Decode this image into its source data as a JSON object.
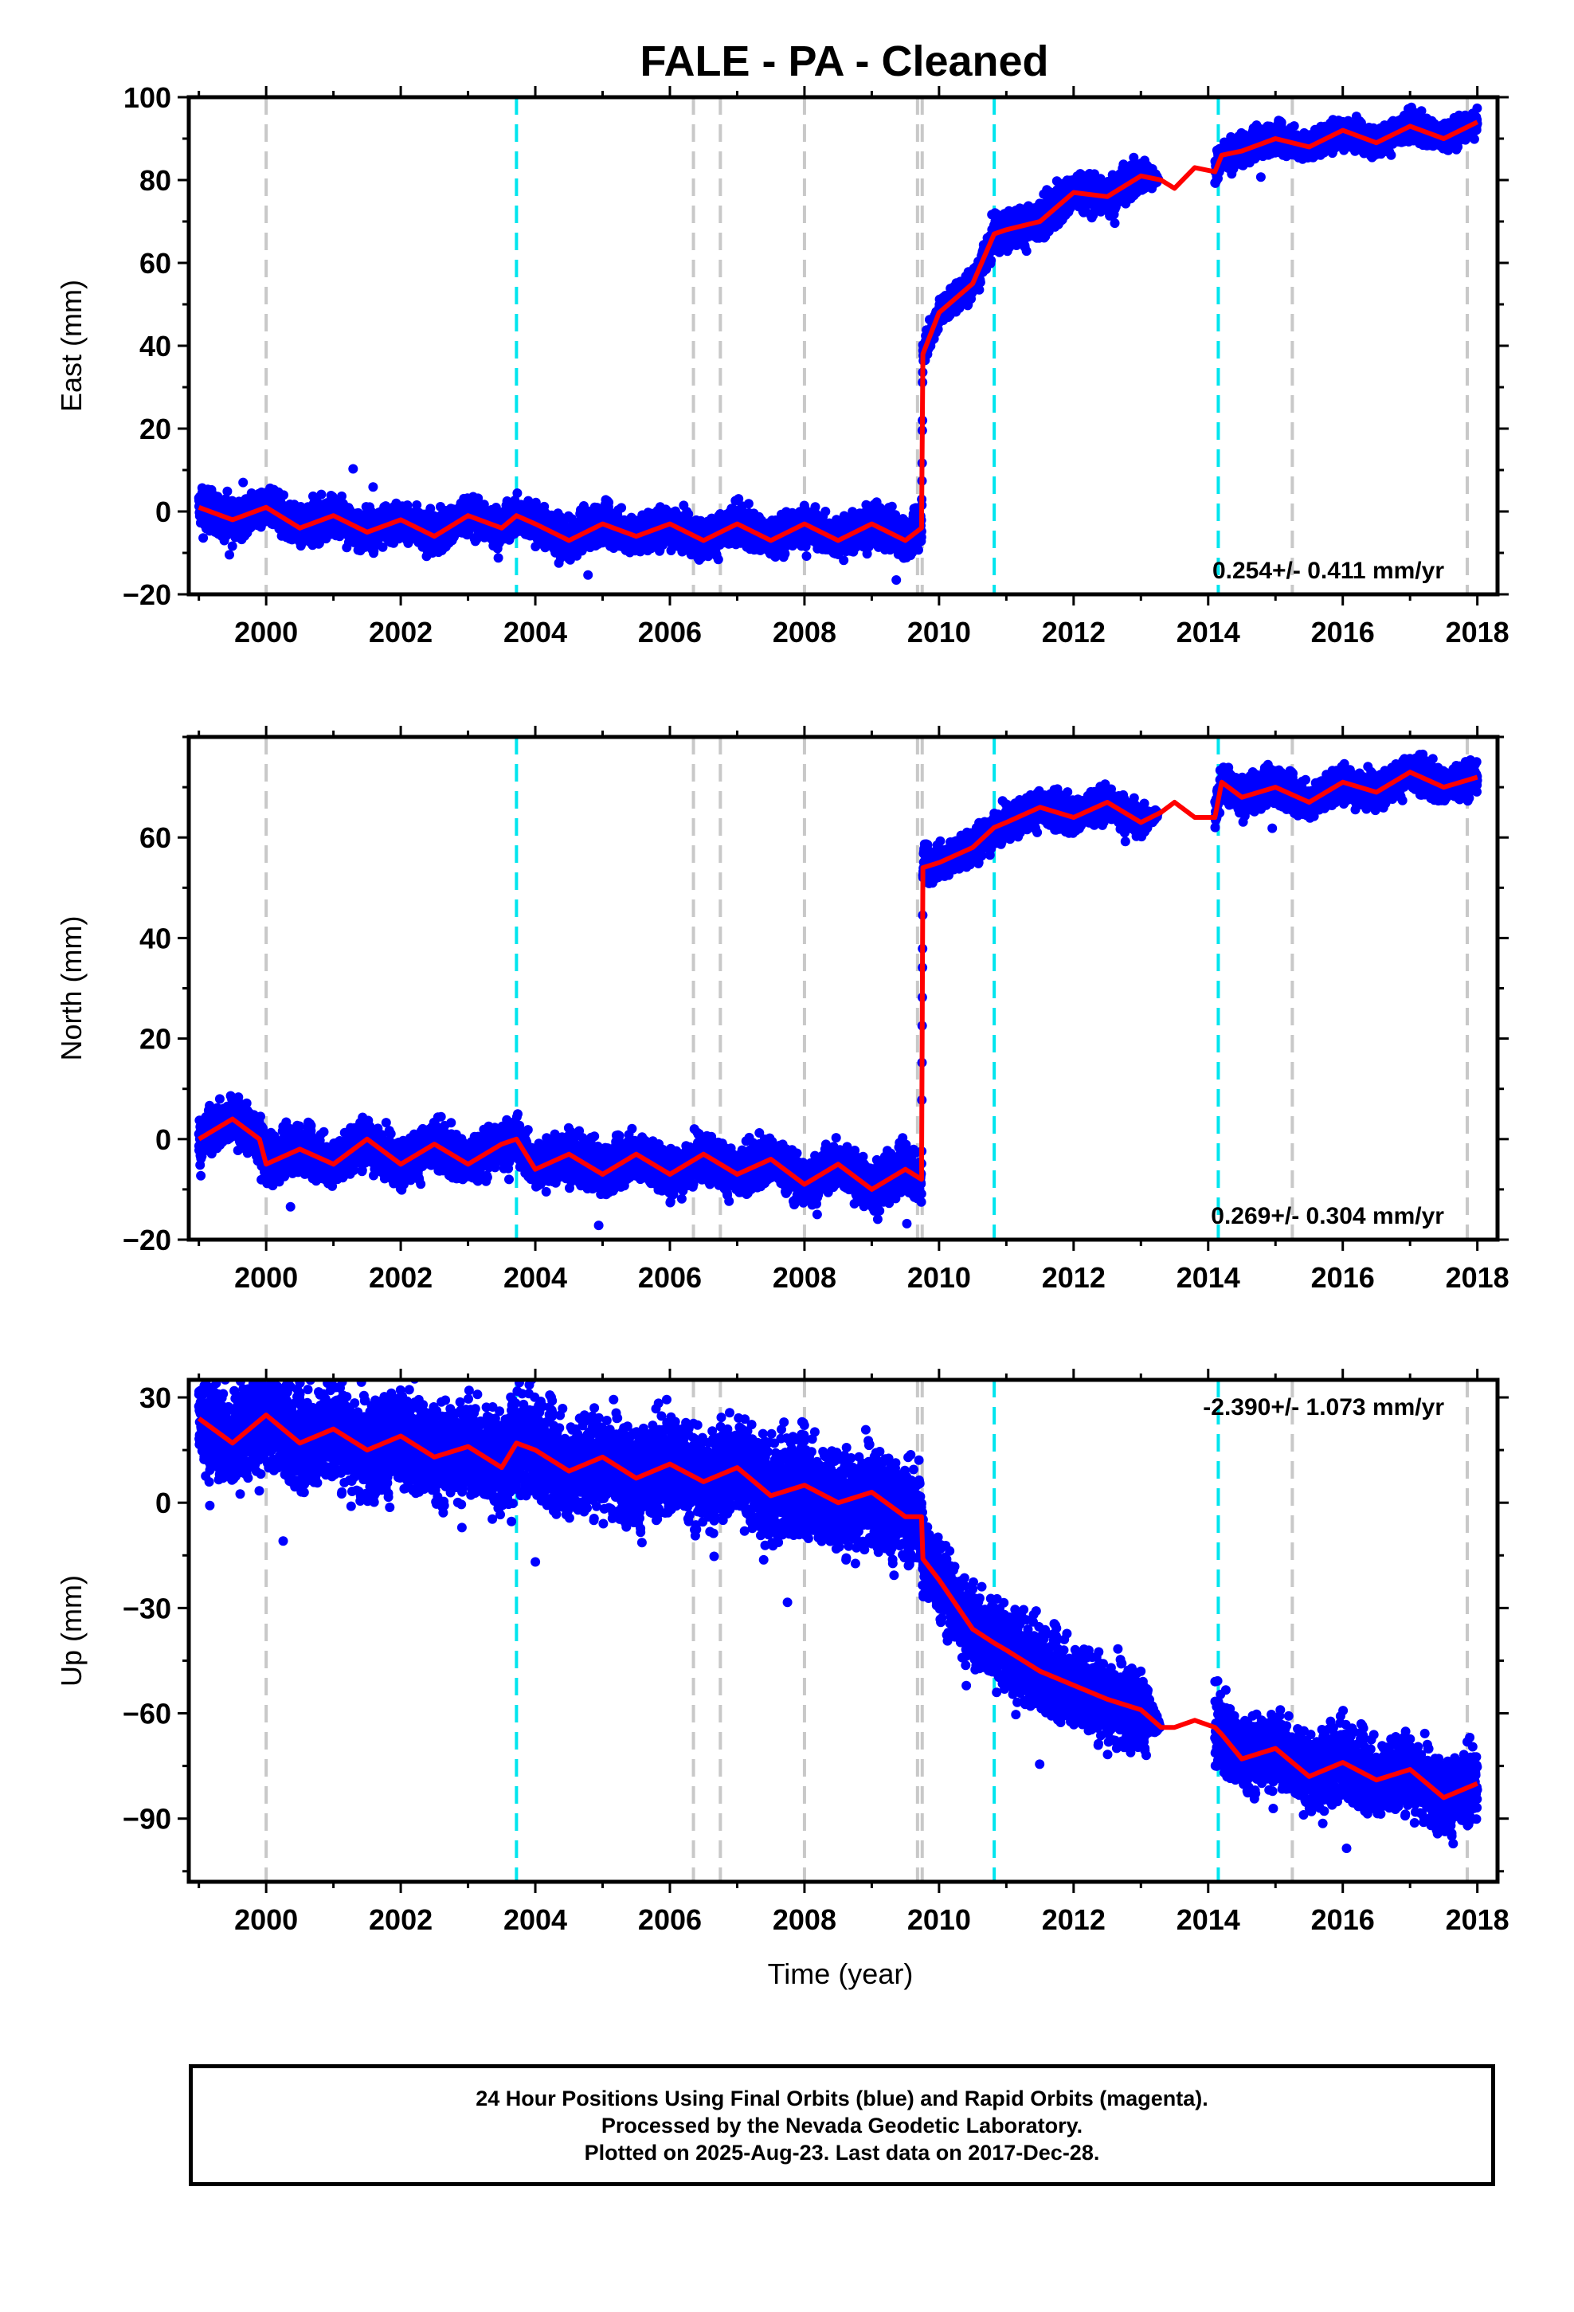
{
  "title": "FALE  - PA - Cleaned",
  "xlabel": "Time (year)",
  "caption": {
    "line1": "24 Hour Positions Using Final Orbits (blue) and Rapid Orbits (magenta).",
    "line2": "Processed by the Nevada Geodetic Laboratory.",
    "line3": "Plotted on 2025-Aug-23. Last data on 2017-Dec-28."
  },
  "colors": {
    "points": "#0000ff",
    "model": "#ff0000",
    "cyan_lines": "#00e5ee",
    "gray_lines": "#c8c8c8"
  },
  "event_lines": {
    "cyan": [
      2003.72,
      2010.82,
      2014.15
    ],
    "gray": [
      2000.0,
      2006.35,
      2006.75,
      2008.0,
      2009.68,
      2009.75,
      2015.25,
      2017.85
    ]
  },
  "chart_data": [
    {
      "type": "scatter",
      "panel": "east",
      "ylabel": "East (mm)",
      "rate_label": "0.254+/- 0.411 mm/yr",
      "xlim": [
        1998.85,
        2018.3
      ],
      "ylim": [
        -20,
        100
      ],
      "xticks": [
        2000,
        2002,
        2004,
        2006,
        2008,
        2010,
        2012,
        2014,
        2016,
        2018
      ],
      "yticks": [
        -20,
        0,
        20,
        40,
        60,
        80,
        100
      ],
      "series": [
        {
          "x": [
            1999.0,
            1999.5,
            2000.0,
            2000.5,
            2001.0,
            2001.5,
            2002.0,
            2002.5,
            2003.0,
            2003.5,
            2003.72,
            2004.0,
            2004.5,
            2005.0,
            2005.5,
            2006.0,
            2006.5,
            2007.0,
            2007.5,
            2008.0,
            2008.5,
            2009.0,
            2009.5,
            2009.74,
            2009.76,
            2010.0,
            2010.5,
            2010.82,
            2011.0,
            2011.5,
            2012.0,
            2012.5,
            2013.0,
            2013.3,
            2013.5,
            2013.8,
            2014.1,
            2014.2,
            2014.5,
            2015.0,
            2015.5,
            2016.0,
            2016.5,
            2017.0,
            2017.5,
            2018.0
          ],
          "y": [
            1,
            -2,
            1,
            -4,
            -1,
            -5,
            -2,
            -6,
            -1,
            -4,
            -1,
            -3,
            -7,
            -3,
            -6,
            -3,
            -7,
            -3,
            -7,
            -3,
            -7,
            -3,
            -7,
            -4,
            38,
            48,
            55,
            67,
            68,
            70,
            77,
            76,
            81,
            80,
            78,
            83,
            82,
            86,
            87,
            90,
            88,
            92,
            89,
            93,
            90,
            94
          ],
          "spread": [
            4,
            4,
            4,
            4,
            4,
            4,
            4,
            4,
            4,
            4,
            4,
            4,
            4,
            4,
            4,
            4,
            4,
            4,
            4,
            4,
            4,
            4,
            4,
            4,
            3,
            3,
            3,
            4,
            4,
            4,
            4,
            4,
            4,
            0,
            0,
            0,
            3,
            3,
            3,
            3,
            3,
            3,
            3,
            3,
            3,
            3
          ],
          "gaps": [
            [
              2013.3,
              2014.1
            ]
          ]
        }
      ]
    },
    {
      "type": "scatter",
      "panel": "north",
      "ylabel": "North (mm)",
      "rate_label": "0.269+/- 0.304 mm/yr",
      "xlim": [
        1998.85,
        2018.3
      ],
      "ylim": [
        -20,
        80
      ],
      "xticks": [
        2000,
        2002,
        2004,
        2006,
        2008,
        2010,
        2012,
        2014,
        2016,
        2018
      ],
      "yticks": [
        -20,
        0,
        20,
        40,
        60
      ],
      "series": [
        {
          "x": [
            1999.0,
            1999.5,
            1999.9,
            2000.0,
            2000.5,
            2001.0,
            2001.5,
            2002.0,
            2002.5,
            2003.0,
            2003.5,
            2003.72,
            2004.0,
            2004.5,
            2005.0,
            2005.5,
            2006.0,
            2006.5,
            2007.0,
            2007.5,
            2008.0,
            2008.5,
            2009.0,
            2009.5,
            2009.74,
            2009.76,
            2010.0,
            2010.5,
            2010.82,
            2011.0,
            2011.5,
            2012.0,
            2012.5,
            2013.0,
            2013.3,
            2013.5,
            2013.8,
            2014.1,
            2014.2,
            2014.5,
            2015.0,
            2015.5,
            2016.0,
            2016.5,
            2017.0,
            2017.5,
            2018.0
          ],
          "y": [
            0,
            4,
            0,
            -5,
            -2,
            -5,
            0,
            -5,
            -1,
            -5,
            -1,
            0,
            -6,
            -3,
            -7,
            -3,
            -7,
            -3,
            -7,
            -4,
            -9,
            -5,
            -10,
            -6,
            -8,
            54,
            55,
            58,
            62,
            63,
            66,
            64,
            67,
            63,
            65,
            67,
            64,
            64,
            71,
            68,
            70,
            67,
            71,
            69,
            73,
            70,
            72
          ],
          "spread": [
            4,
            4,
            4,
            4,
            4,
            4,
            4,
            4,
            4,
            4,
            4,
            4,
            4,
            4,
            4,
            4,
            4,
            4,
            4,
            4,
            4,
            4,
            4,
            4,
            4,
            3,
            3,
            3,
            3,
            3,
            3,
            3,
            3,
            3,
            0,
            0,
            0,
            3,
            3,
            3,
            3,
            3,
            3,
            3,
            3,
            3,
            3
          ],
          "gaps": [
            [
              2013.3,
              2014.1
            ]
          ]
        }
      ]
    },
    {
      "type": "scatter",
      "panel": "up",
      "ylabel": "Up (mm)",
      "rate_label": "-2.390+/- 1.073 mm/yr",
      "xlim": [
        1998.85,
        2018.3
      ],
      "ylim": [
        -108,
        35
      ],
      "xticks": [
        2000,
        2002,
        2004,
        2006,
        2008,
        2010,
        2012,
        2014,
        2016,
        2018
      ],
      "yticks": [
        -90,
        -60,
        -30,
        0,
        30
      ],
      "series": [
        {
          "x": [
            1999.0,
            1999.5,
            2000.0,
            2000.5,
            2001.0,
            2001.5,
            2002.0,
            2002.5,
            2003.0,
            2003.5,
            2003.72,
            2004.0,
            2004.5,
            2005.0,
            2005.5,
            2006.0,
            2006.5,
            2007.0,
            2007.5,
            2008.0,
            2008.5,
            2009.0,
            2009.5,
            2009.74,
            2009.76,
            2010.0,
            2010.5,
            2010.82,
            2011.0,
            2011.5,
            2012.0,
            2012.5,
            2013.0,
            2013.3,
            2013.5,
            2013.8,
            2014.1,
            2014.2,
            2014.5,
            2015.0,
            2015.5,
            2016.0,
            2016.5,
            2017.0,
            2017.5,
            2018.0
          ],
          "y": [
            24,
            17,
            25,
            17,
            21,
            15,
            19,
            13,
            16,
            10,
            17,
            15,
            9,
            13,
            7,
            11,
            6,
            10,
            2,
            5,
            0,
            3,
            -4,
            -4,
            -16,
            -22,
            -36,
            -40,
            -42,
            -48,
            -52,
            -56,
            -59,
            -64,
            -64,
            -62,
            -64,
            -66,
            -73,
            -70,
            -78,
            -74,
            -79,
            -76,
            -84,
            -80
          ],
          "spread": [
            12,
            12,
            12,
            12,
            12,
            12,
            12,
            12,
            12,
            12,
            12,
            12,
            12,
            12,
            12,
            12,
            12,
            12,
            12,
            12,
            12,
            12,
            12,
            10,
            10,
            10,
            10,
            10,
            10,
            10,
            10,
            10,
            10,
            0,
            0,
            0,
            9,
            9,
            9,
            9,
            9,
            9,
            9,
            9,
            9,
            9
          ],
          "gaps": [
            [
              2013.3,
              2014.1
            ]
          ]
        }
      ]
    }
  ]
}
